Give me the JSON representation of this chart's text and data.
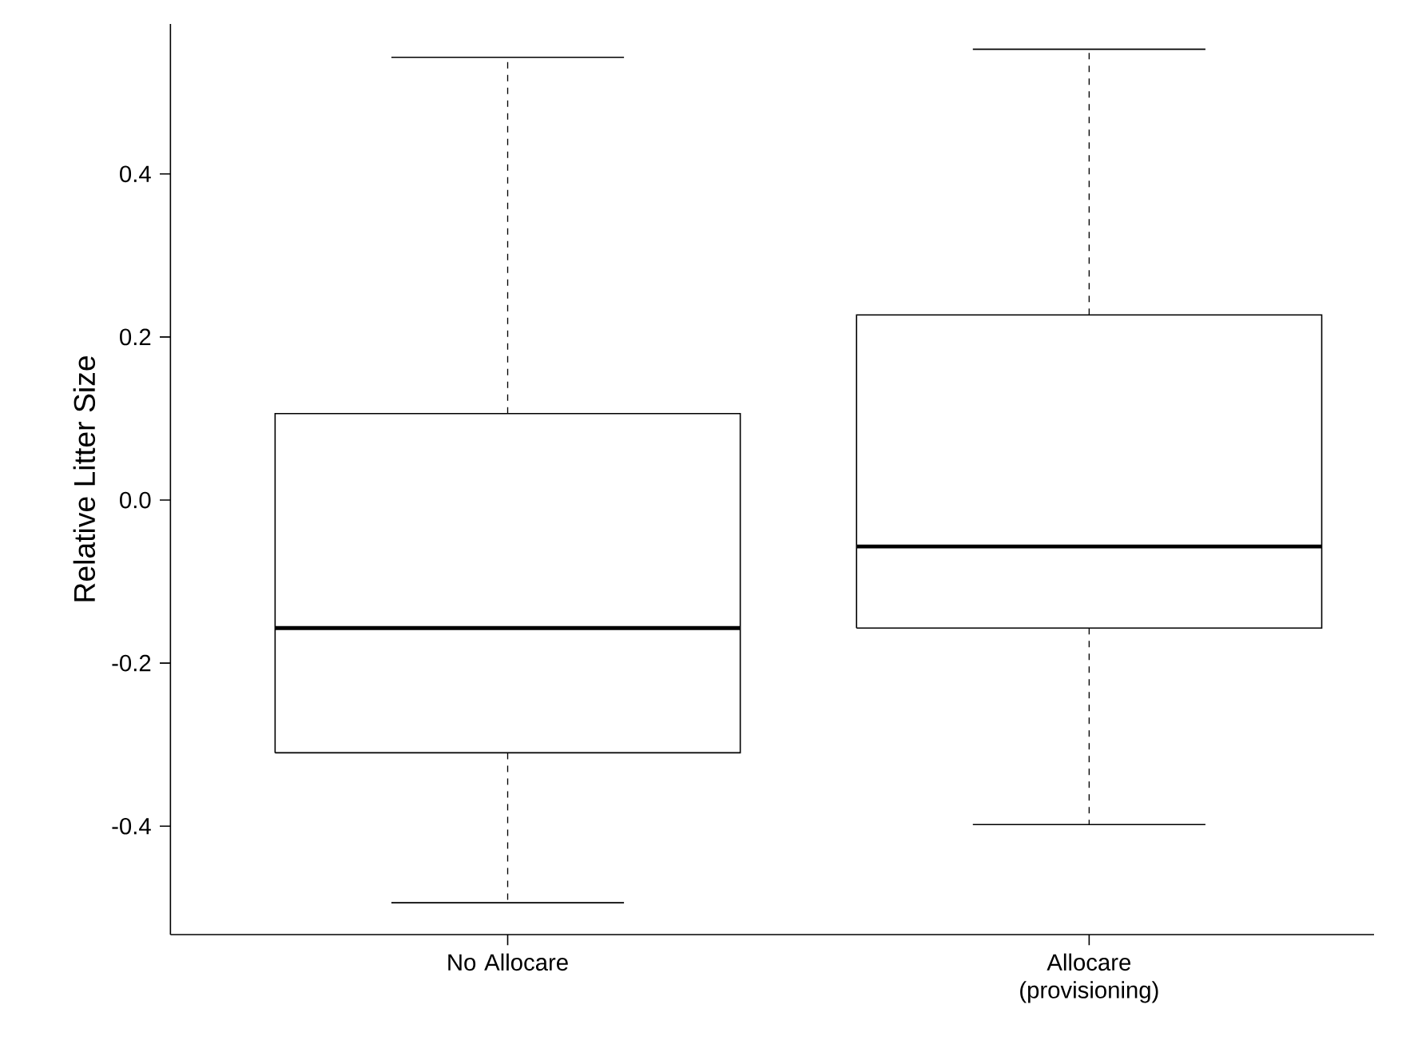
{
  "chart_data": {
    "type": "box",
    "ylabel": "Relative Litter Size",
    "categories": [
      "No Allocare",
      "Allocare (provisioning)"
    ],
    "boxes": [
      {
        "low": -0.494,
        "q1": -0.31,
        "median": -0.157,
        "q3": 0.106,
        "high": 0.543
      },
      {
        "low": -0.398,
        "q1": -0.157,
        "median": -0.057,
        "q3": 0.227,
        "high": 0.553
      }
    ],
    "ylim": [
      -0.533,
      0.584
    ],
    "yticks": [
      -0.4,
      -0.2,
      {
        "value": 0,
        "label": "0.0"
      },
      0.2,
      0.4
    ],
    "grid": false
  }
}
